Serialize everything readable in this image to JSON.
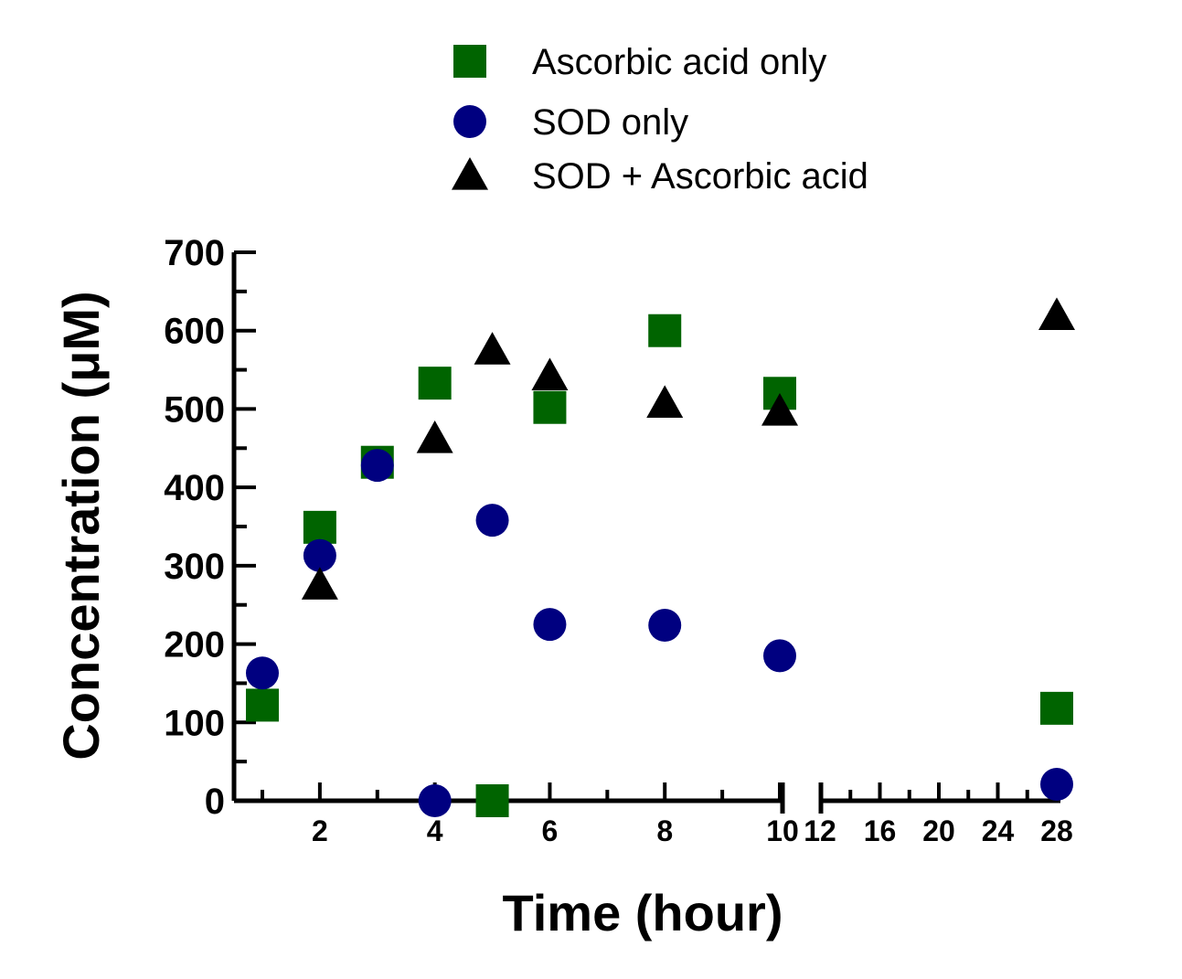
{
  "chart_data": {
    "type": "scatter",
    "xlabel": "Time (hour)",
    "ylabel": "Concentration (μM)",
    "ylim": [
      0,
      700
    ],
    "y_ticks": [
      0,
      100,
      200,
      300,
      400,
      500,
      600,
      700
    ],
    "x_axis_break": "between 10 and 12",
    "xlim_segment1": [
      0.5,
      10
    ],
    "xlim_segment2": [
      12,
      28
    ],
    "x_ticks_segment1": [
      "2",
      "4",
      "6",
      "8",
      "10"
    ],
    "x_ticks_segment2": [
      "12",
      "16",
      "20",
      "24",
      "28"
    ],
    "legend_position": "top",
    "series": [
      {
        "name": "Ascorbic acid only",
        "marker": "square",
        "color": "#006400",
        "points": [
          [
            1,
            122
          ],
          [
            2,
            349
          ],
          [
            3,
            432
          ],
          [
            4,
            533
          ],
          [
            5,
            0
          ],
          [
            6,
            502
          ],
          [
            8,
            600
          ],
          [
            10,
            520
          ],
          [
            28,
            118
          ]
        ]
      },
      {
        "name": "SOD only",
        "marker": "circle",
        "color": "#000080",
        "points": [
          [
            1,
            163
          ],
          [
            2,
            313
          ],
          [
            3,
            428
          ],
          [
            4,
            0
          ],
          [
            5,
            358
          ],
          [
            6,
            225
          ],
          [
            8,
            224
          ],
          [
            10,
            185
          ],
          [
            28,
            21
          ]
        ]
      },
      {
        "name": "SOD + Ascorbic acid",
        "marker": "triangle",
        "color": "#000000",
        "points": [
          [
            2,
            275
          ],
          [
            4,
            462
          ],
          [
            5,
            575
          ],
          [
            6,
            542
          ],
          [
            8,
            507
          ],
          [
            10,
            497
          ],
          [
            28,
            619
          ]
        ]
      }
    ]
  }
}
